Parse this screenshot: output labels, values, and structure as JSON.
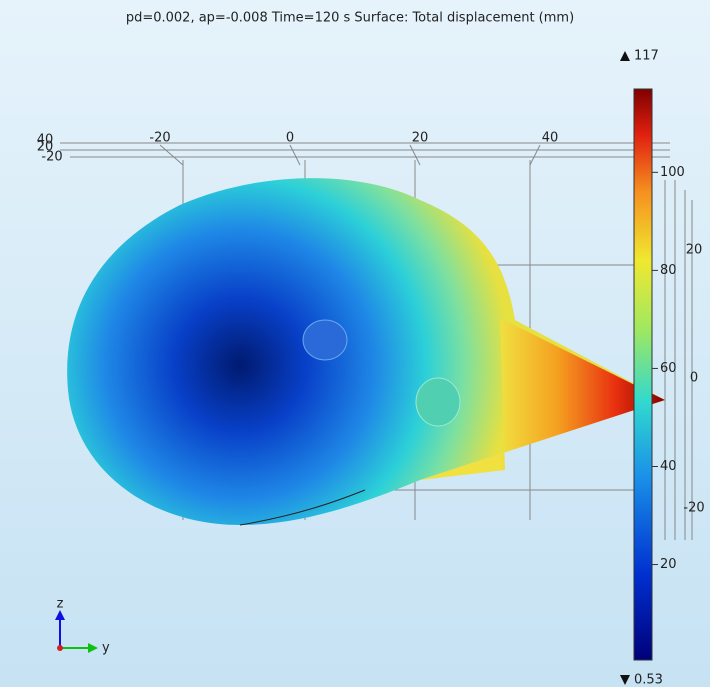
{
  "title": "pd=0.002, ap=-0.008 Time=120 s   Surface: Total displacement (mm)",
  "colorbar": {
    "max": 117,
    "min": 0.53,
    "ticks": [
      20,
      40,
      60,
      80,
      100
    ]
  },
  "axes": {
    "top_ticks": [
      "-20",
      "0",
      "20",
      "40"
    ],
    "left_ticks": [
      "40",
      "20",
      "-20"
    ],
    "right_ticks": [
      "20",
      "0",
      "-20"
    ]
  },
  "triad": {
    "vertical": "z",
    "horizontal": "y"
  }
}
